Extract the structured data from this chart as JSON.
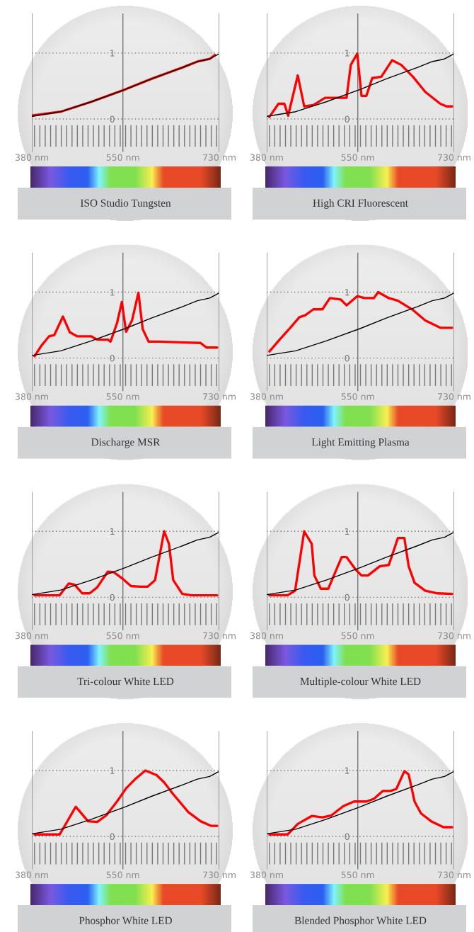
{
  "chart_data": [
    {
      "type": "line",
      "title": "ISO Studio Tungsten",
      "xlim": [
        380,
        730
      ],
      "ylim": [
        -0.5,
        1.6
      ],
      "xticks": [
        {
          "value": 380,
          "label": "380 nm"
        },
        {
          "value": 550,
          "label": "550 nm"
        },
        {
          "value": 730,
          "label": "730 nm"
        }
      ],
      "yticks": [
        0,
        1
      ],
      "grid": true,
      "series": [
        {
          "color": "#ff0000",
          "x": [
            380,
            434,
            491,
            555,
            604,
            661,
            689,
            712,
            722
          ],
          "values": [
            0.05,
            0.11,
            0.26,
            0.45,
            0.61,
            0.78,
            0.87,
            0.91,
            0.97
          ]
        },
        {
          "color": "#000000",
          "x": [
            380,
            434,
            491,
            555,
            604,
            661,
            689,
            712,
            728
          ],
          "values": [
            0.04,
            0.11,
            0.26,
            0.45,
            0.61,
            0.78,
            0.87,
            0.91,
            0.98
          ]
        }
      ]
    },
    {
      "type": "line",
      "title": "High CRI Fluorescent",
      "xlim": [
        380,
        730
      ],
      "ylim": [
        -0.5,
        1.6
      ],
      "xticks": [
        {
          "value": 380,
          "label": "380 nm"
        },
        {
          "value": 550,
          "label": "550 nm"
        },
        {
          "value": 730,
          "label": "730 nm"
        }
      ],
      "yticks": [
        0,
        1
      ],
      "grid": true,
      "series": [
        {
          "color": "#ff0000",
          "x": [
            385,
            402,
            413,
            420,
            438,
            450,
            467,
            489,
            529,
            537,
            549,
            557,
            566,
            577,
            594,
            614,
            631,
            653,
            676,
            704,
            716,
            726
          ],
          "values": [
            0.03,
            0.23,
            0.23,
            0.05,
            0.66,
            0.19,
            0.21,
            0.32,
            0.32,
            0.82,
            0.99,
            0.35,
            0.35,
            0.62,
            0.64,
            0.89,
            0.82,
            0.64,
            0.41,
            0.23,
            0.19,
            0.19
          ]
        },
        {
          "color": "#000000",
          "x": [
            380,
            434,
            491,
            555,
            604,
            661,
            689,
            712,
            728
          ],
          "values": [
            0.04,
            0.11,
            0.26,
            0.45,
            0.61,
            0.78,
            0.87,
            0.91,
            0.98
          ]
        }
      ]
    },
    {
      "type": "line",
      "title": "Discharge MSR",
      "xlim": [
        380,
        730
      ],
      "ylim": [
        -0.5,
        1.6
      ],
      "xticks": [
        {
          "value": 380,
          "label": "380 nm"
        },
        {
          "value": 550,
          "label": "550 nm"
        },
        {
          "value": 730,
          "label": "730 nm"
        }
      ],
      "yticks": [
        0,
        1
      ],
      "grid": true,
      "series": [
        {
          "color": "#ff0000",
          "x": [
            385,
            398,
            412,
            422,
            438,
            451,
            465,
            491,
            502,
            522,
            527,
            539,
            548,
            556,
            567,
            579,
            587,
            598,
            616,
            695,
            706,
            726
          ],
          "values": [
            0.03,
            0.19,
            0.33,
            0.35,
            0.63,
            0.39,
            0.33,
            0.33,
            0.28,
            0.28,
            0.25,
            0.53,
            0.85,
            0.4,
            0.57,
            0.99,
            0.44,
            0.25,
            0.25,
            0.23,
            0.16,
            0.16
          ]
        },
        {
          "color": "#000000",
          "x": [
            380,
            434,
            491,
            555,
            604,
            661,
            689,
            712,
            728
          ],
          "values": [
            0.04,
            0.11,
            0.26,
            0.45,
            0.61,
            0.78,
            0.87,
            0.91,
            0.98
          ]
        }
      ]
    },
    {
      "type": "line",
      "title": "Light Emitting Plasma",
      "xlim": [
        380,
        730
      ],
      "ylim": [
        -0.5,
        1.6
      ],
      "xticks": [
        {
          "value": 380,
          "label": "380 nm"
        },
        {
          "value": 550,
          "label": "550 nm"
        },
        {
          "value": 730,
          "label": "730 nm"
        }
      ],
      "yticks": [
        0,
        1
      ],
      "grid": true,
      "series": [
        {
          "color": "#ff0000",
          "x": [
            385,
            404,
            424,
            441,
            452,
            467,
            484,
            498,
            518,
            529,
            549,
            563,
            580,
            588,
            608,
            625,
            653,
            676,
            704,
            726
          ],
          "values": [
            0.1,
            0.28,
            0.46,
            0.62,
            0.65,
            0.74,
            0.74,
            0.91,
            0.89,
            0.8,
            0.94,
            0.91,
            0.91,
            1.0,
            0.91,
            0.87,
            0.73,
            0.57,
            0.46,
            0.46
          ]
        },
        {
          "color": "#000000",
          "x": [
            380,
            434,
            491,
            555,
            604,
            661,
            689,
            712,
            728
          ],
          "values": [
            0.04,
            0.11,
            0.26,
            0.45,
            0.61,
            0.78,
            0.87,
            0.91,
            0.98
          ]
        }
      ]
    },
    {
      "type": "line",
      "title": "Tri-colour White LED",
      "xlim": [
        380,
        730
      ],
      "ylim": [
        -0.5,
        1.6
      ],
      "xticks": [
        {
          "value": 380,
          "label": "380 nm"
        },
        {
          "value": 550,
          "label": "550 nm"
        },
        {
          "value": 730,
          "label": "730 nm"
        }
      ],
      "yticks": [
        0,
        1
      ],
      "grid": true,
      "series": [
        {
          "color": "#ff0000",
          "x": [
            385,
            432,
            449,
            460,
            474,
            488,
            502,
            522,
            533,
            548,
            565,
            582,
            596,
            610,
            627,
            636,
            644,
            661,
            678,
            726
          ],
          "values": [
            0.03,
            0.03,
            0.21,
            0.19,
            0.06,
            0.06,
            0.15,
            0.39,
            0.38,
            0.29,
            0.17,
            0.16,
            0.16,
            0.26,
            1.0,
            0.81,
            0.26,
            0.05,
            0.03,
            0.03
          ]
        },
        {
          "color": "#000000",
          "x": [
            380,
            434,
            491,
            555,
            604,
            661,
            689,
            712,
            728
          ],
          "values": [
            0.04,
            0.11,
            0.26,
            0.45,
            0.61,
            0.78,
            0.87,
            0.91,
            0.98
          ]
        }
      ]
    },
    {
      "type": "line",
      "title": "Multiple-colour White LED",
      "xlim": [
        380,
        730
      ],
      "ylim": [
        -0.5,
        1.6
      ],
      "xticks": [
        {
          "value": 380,
          "label": "380 nm"
        },
        {
          "value": 550,
          "label": "550 nm"
        },
        {
          "value": 730,
          "label": "730 nm"
        }
      ],
      "yticks": [
        0,
        1
      ],
      "grid": true,
      "series": [
        {
          "color": "#ff0000",
          "x": [
            385,
            419,
            433,
            450,
            464,
            469,
            481,
            495,
            509,
            520,
            529,
            546,
            557,
            569,
            591,
            608,
            625,
            637,
            645,
            656,
            676,
            699,
            726
          ],
          "values": [
            0.03,
            0.03,
            0.1,
            1.0,
            0.81,
            0.33,
            0.13,
            0.13,
            0.4,
            0.61,
            0.61,
            0.42,
            0.33,
            0.33,
            0.47,
            0.49,
            0.9,
            0.9,
            0.47,
            0.22,
            0.1,
            0.06,
            0.05
          ]
        },
        {
          "color": "#000000",
          "x": [
            380,
            434,
            491,
            555,
            604,
            661,
            689,
            712,
            728
          ],
          "values": [
            0.04,
            0.11,
            0.26,
            0.45,
            0.61,
            0.78,
            0.87,
            0.91,
            0.98
          ]
        }
      ]
    },
    {
      "type": "line",
      "title": "Phosphor White LED",
      "xlim": [
        380,
        730
      ],
      "ylim": [
        -0.5,
        1.6
      ],
      "xticks": [
        {
          "value": 380,
          "label": "380 nm"
        },
        {
          "value": 550,
          "label": "550 nm"
        },
        {
          "value": 730,
          "label": "730 nm"
        }
      ],
      "yticks": [
        0,
        1
      ],
      "grid": true,
      "series": [
        {
          "color": "#ff0000",
          "x": [
            385,
            432,
            462,
            485,
            502,
            519,
            539,
            556,
            573,
            592,
            613,
            627,
            644,
            672,
            695,
            715,
            726
          ],
          "values": [
            0.03,
            0.03,
            0.45,
            0.23,
            0.22,
            0.32,
            0.53,
            0.73,
            0.87,
            1.0,
            0.93,
            0.82,
            0.64,
            0.37,
            0.23,
            0.16,
            0.16
          ]
        },
        {
          "color": "#000000",
          "x": [
            380,
            434,
            491,
            555,
            604,
            661,
            689,
            712,
            728
          ],
          "values": [
            0.04,
            0.11,
            0.26,
            0.45,
            0.61,
            0.78,
            0.87,
            0.91,
            0.98
          ]
        }
      ]
    },
    {
      "type": "line",
      "title": "Blended Phosphor White LED",
      "xlim": [
        380,
        730
      ],
      "ylim": [
        -0.5,
        1.6
      ],
      "xticks": [
        {
          "value": 380,
          "label": "380 nm"
        },
        {
          "value": 550,
          "label": "550 nm"
        },
        {
          "value": 730,
          "label": "730 nm"
        }
      ],
      "yticks": [
        0,
        1
      ],
      "grid": true,
      "series": [
        {
          "color": "#ff0000",
          "x": [
            385,
            419,
            438,
            464,
            484,
            501,
            523,
            543,
            566,
            580,
            597,
            611,
            622,
            637,
            645,
            656,
            668,
            687,
            710,
            726
          ],
          "values": [
            0.03,
            0.03,
            0.19,
            0.31,
            0.29,
            0.32,
            0.46,
            0.53,
            0.53,
            0.57,
            0.69,
            0.69,
            0.72,
            0.99,
            0.94,
            0.53,
            0.35,
            0.23,
            0.14,
            0.14
          ]
        },
        {
          "color": "#000000",
          "x": [
            380,
            434,
            491,
            555,
            604,
            661,
            689,
            712,
            728
          ],
          "values": [
            0.04,
            0.11,
            0.26,
            0.45,
            0.61,
            0.78,
            0.87,
            0.91,
            0.98
          ]
        }
      ]
    }
  ]
}
